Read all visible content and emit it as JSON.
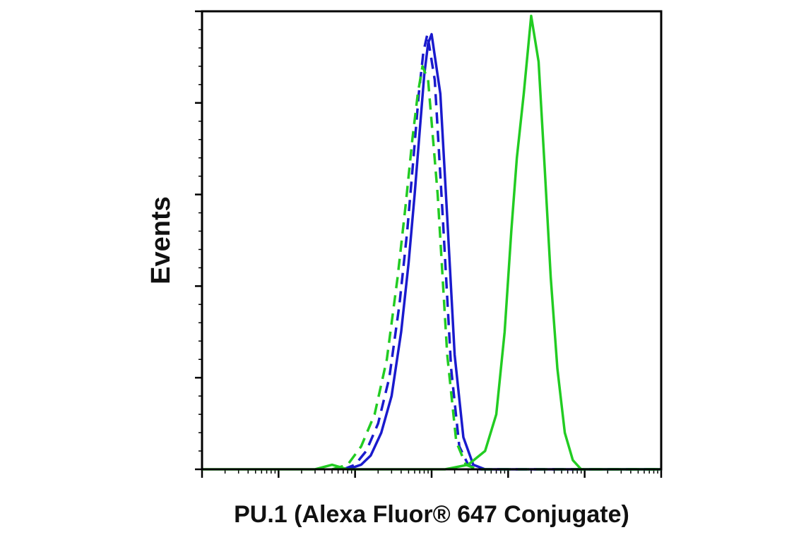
{
  "chart_data": {
    "type": "line",
    "title": "",
    "xlabel": "PU.1 (Alexa Fluor® 647 Conjugate)",
    "ylabel": "Events",
    "x_scale": "log",
    "xlim": [
      1,
      1000000
    ],
    "ylim": [
      0,
      100
    ],
    "grid": false,
    "legend": "none",
    "series": [
      {
        "color": "#1a1acd",
        "style": "solid",
        "x": [
          80,
          120,
          160,
          220,
          300,
          400,
          500,
          600,
          700,
          800,
          900,
          1000,
          1300,
          1600,
          2000,
          2600,
          3500,
          5000,
          10000,
          100000,
          1000000
        ],
        "y": [
          0,
          1,
          3,
          8,
          16,
          30,
          45,
          60,
          74,
          86,
          93,
          95,
          82,
          55,
          25,
          7,
          1,
          0,
          0,
          0,
          0
        ]
      },
      {
        "color": "#1a1acd",
        "style": "dashed",
        "x": [
          70,
          100,
          140,
          200,
          280,
          380,
          480,
          580,
          680,
          780,
          880,
          1100,
          1400,
          1800,
          2300,
          3000,
          4000,
          10000,
          1000000
        ],
        "y": [
          0,
          1,
          4,
          10,
          20,
          36,
          52,
          68,
          82,
          91,
          95,
          85,
          55,
          22,
          5,
          1,
          0,
          0,
          0
        ]
      },
      {
        "color": "#22cc22",
        "style": "dashed",
        "x": [
          50,
          80,
          120,
          180,
          260,
          360,
          460,
          560,
          660,
          760,
          900,
          1200,
          1600,
          2100,
          2800,
          4000,
          10000,
          1000000
        ],
        "y": [
          0,
          1,
          5,
          12,
          24,
          42,
          58,
          72,
          82,
          88,
          85,
          60,
          25,
          6,
          1,
          0,
          0,
          0
        ]
      },
      {
        "color": "#22cc22",
        "style": "solid",
        "x": [
          1,
          30,
          50,
          80,
          150,
          400,
          1500,
          3000,
          5000,
          7000,
          9000,
          11000,
          13000,
          16000,
          20000,
          25000,
          30000,
          36000,
          44000,
          55000,
          70000,
          90000,
          130000,
          200000,
          1000000
        ],
        "y": [
          0,
          0,
          1,
          0,
          0,
          0,
          0,
          1,
          4,
          12,
          30,
          52,
          68,
          82,
          99,
          89,
          66,
          42,
          22,
          8,
          2,
          0,
          0,
          0,
          0
        ]
      }
    ]
  }
}
